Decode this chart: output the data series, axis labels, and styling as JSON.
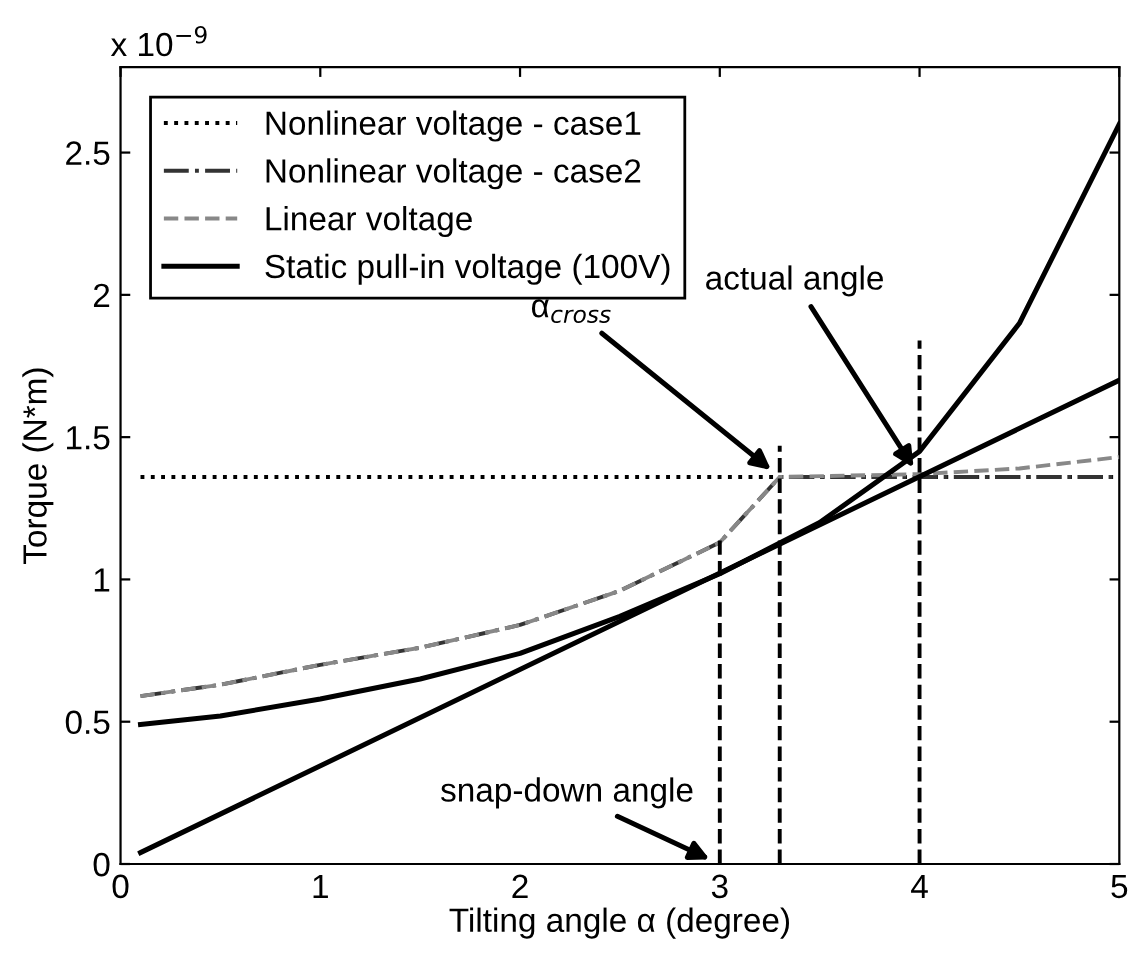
{
  "chart_data": {
    "type": "line",
    "xlabel": "Tilting angle α (degree)",
    "ylabel": "Torque (N*m)",
    "xlim": [
      0,
      5
    ],
    "ylim": [
      0,
      2.8
    ],
    "xticks": [
      0,
      1,
      2,
      3,
      4,
      5
    ],
    "yticks": [
      0,
      0.5,
      1,
      1.5,
      2,
      2.5
    ],
    "grid": false,
    "legend": "top left",
    "series": [
      {
        "name": "Nonlinear voltage - case1",
        "color": "#000000",
        "line_style": "dotted",
        "x": [
          0.1,
          5
        ],
        "values": [
          1.36,
          1.36
        ]
      },
      {
        "name": "Nonlinear voltage - case2",
        "color": "#333333",
        "line_style": "dashdot",
        "x": [
          0.1,
          0.5,
          1,
          1.5,
          2,
          2.5,
          3,
          3.3,
          4,
          5
        ],
        "values": [
          0.59,
          0.63,
          0.7,
          0.76,
          0.84,
          0.96,
          1.13,
          1.36,
          1.36,
          1.36
        ]
      },
      {
        "name": "Linear voltage",
        "color": "#888888",
        "line_style": "dashed",
        "x": [
          0.1,
          0.5,
          1,
          1.5,
          2,
          2.5,
          3,
          3.3,
          4,
          4.5,
          5
        ],
        "values": [
          0.59,
          0.63,
          0.7,
          0.76,
          0.84,
          0.96,
          1.13,
          1.36,
          1.37,
          1.39,
          1.43
        ]
      },
      {
        "name": "Static pull-in voltage (100V)",
        "color": "#000000",
        "line_style": "solid",
        "x": [
          0.1,
          0.5,
          1,
          1.5,
          2,
          2.5,
          3,
          3.5,
          4,
          4.5,
          5
        ],
        "values": [
          0.49,
          0.52,
          0.58,
          0.65,
          0.74,
          0.87,
          1.02,
          1.2,
          1.45,
          1.9,
          2.6
        ]
      },
      {
        "color": "#000000",
        "line_style": "solid",
        "x": [
          0.1,
          5
        ],
        "values": [
          0.04,
          1.7
        ]
      },
      {
        "color": "#000000",
        "line_style": "dashed",
        "x": [
          3,
          3
        ],
        "values": [
          0,
          1.14
        ]
      },
      {
        "color": "#000000",
        "line_style": "dashed",
        "x": [
          3.3,
          3.3
        ],
        "values": [
          0,
          1.47
        ]
      },
      {
        "color": "#000000",
        "line_style": "dashed",
        "x": [
          4,
          4
        ],
        "values": [
          0,
          1.84
        ]
      }
    ],
    "annotations": [
      "x 10$^{−9}$",
      {
        "text": "α$_{cross}$",
        "x": 3.3,
        "y": 1.36
      },
      {
        "text": "actual angle",
        "x": 4,
        "y": 1.36
      },
      {
        "text": "snap-down angle",
        "x": 3,
        "y": 0
      }
    ]
  }
}
